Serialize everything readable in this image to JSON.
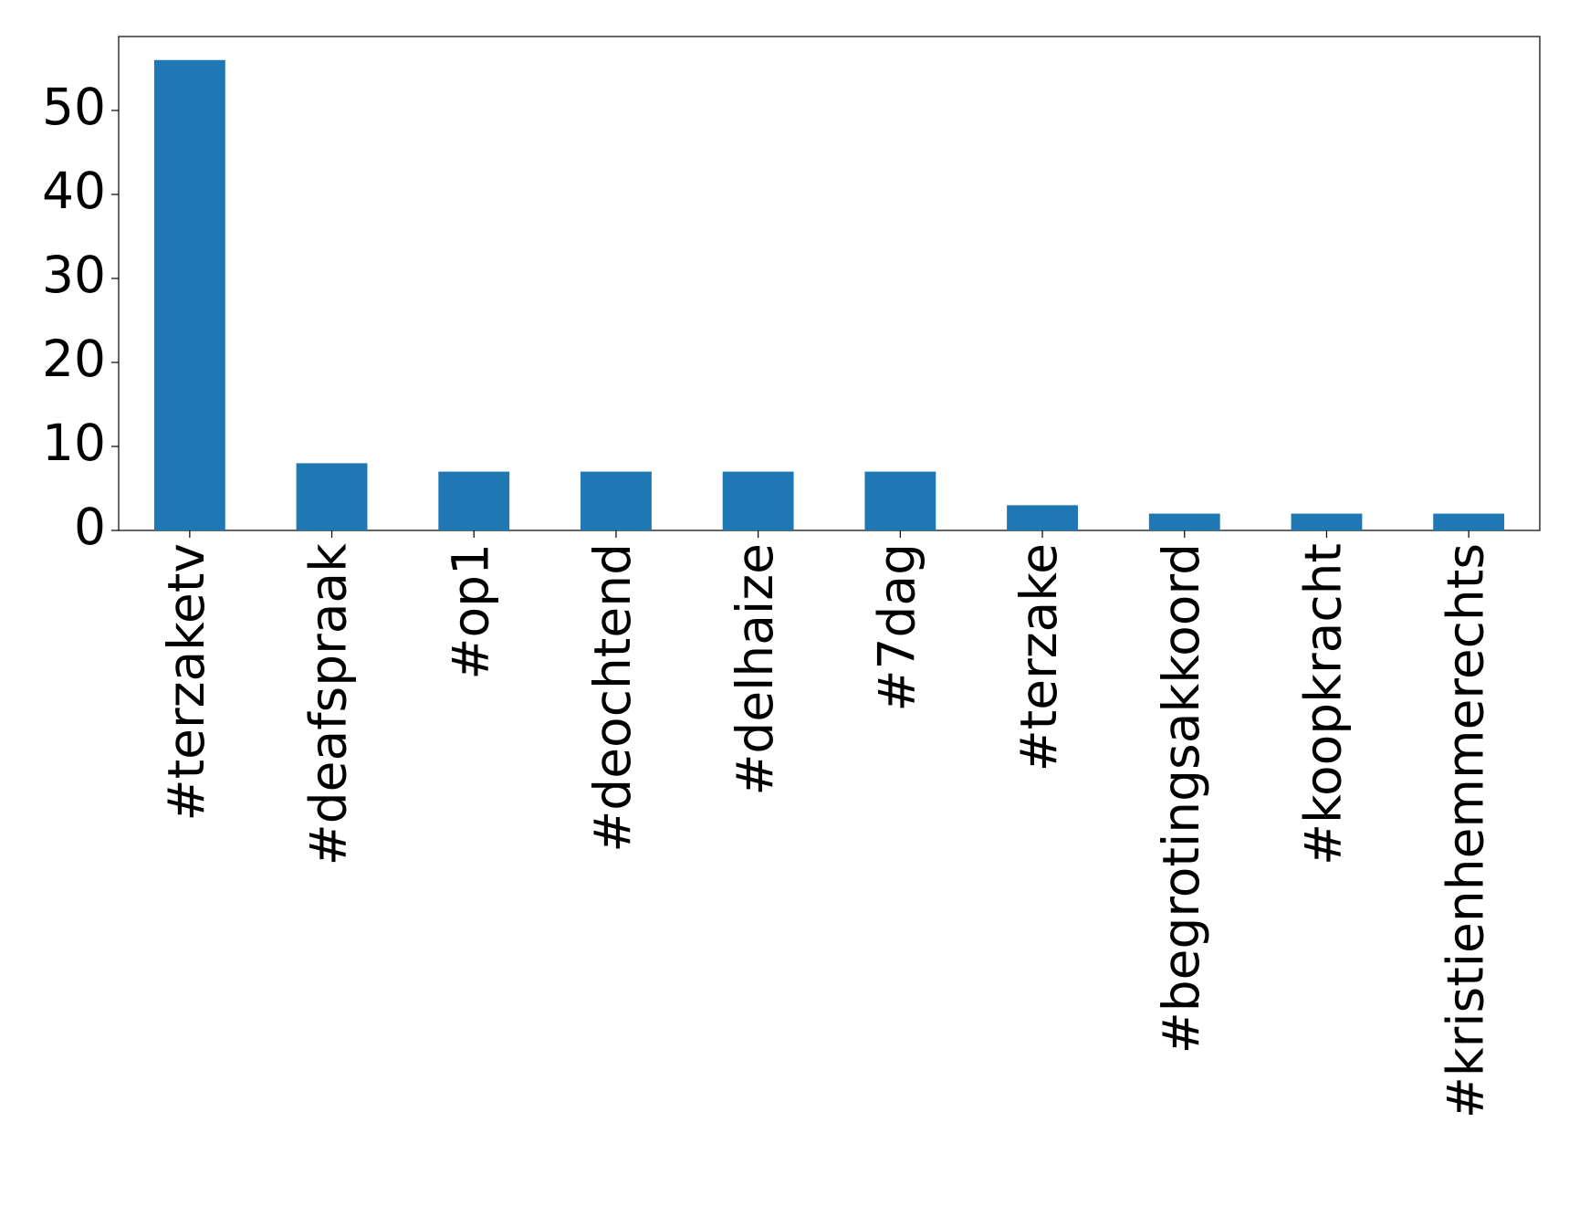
{
  "chart_data": {
    "type": "bar",
    "categories": [
      "#terzaketv",
      "#deafspraak",
      "#op1",
      "#deochtend",
      "#delhaize",
      "#7dag",
      "#terzake",
      "#begrotingsakkoord",
      "#koopkracht",
      "#kristienhemmerechts"
    ],
    "values": [
      56,
      8,
      7,
      7,
      7,
      7,
      3,
      2,
      2,
      2
    ],
    "color": "#1f77b4",
    "ylim": [
      0,
      58.8
    ],
    "yticks": [
      0,
      10,
      20,
      30,
      40,
      50
    ],
    "grid": false
  }
}
